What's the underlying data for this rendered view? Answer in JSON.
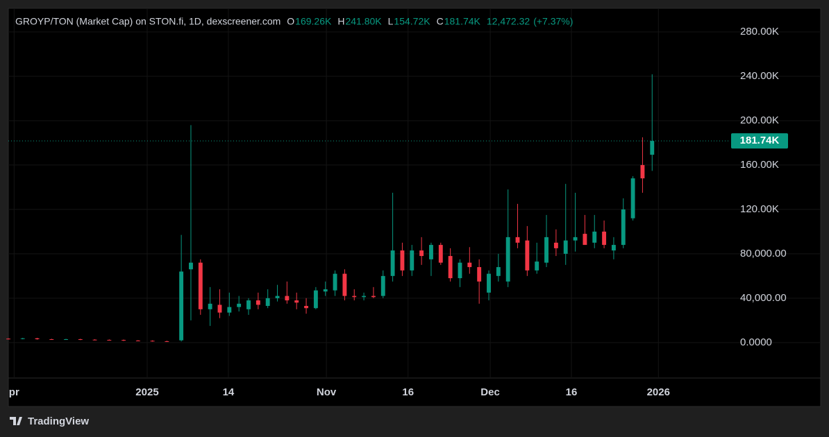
{
  "chart_data": {
    "type": "candlestick",
    "title": "GROYP/TON (Market Cap) on STON.fi, 1D, dexscreener.com",
    "ohlc_header": [
      {
        "letter": "O",
        "value": 169260,
        "label": "169.26K"
      },
      {
        "letter": "H",
        "value": 241800,
        "label": "241.80K"
      },
      {
        "letter": "L",
        "value": 154720,
        "label": "154.72K"
      },
      {
        "letter": "C",
        "value": 181740,
        "label": "181.74K"
      }
    ],
    "change": {
      "value": 12472.32,
      "label": "12,472.32"
    },
    "change_pct": {
      "value": 7.37,
      "label": "(+7.37%)"
    },
    "last_price": {
      "value": 181740,
      "label": "181.74K"
    },
    "watermark": "TradingView",
    "up_color": "#089981",
    "down_color": "#f23645",
    "grid": true,
    "x": [
      0,
      3,
      6,
      9,
      12,
      15,
      18,
      21,
      24,
      27,
      30,
      33,
      36,
      38,
      40,
      42,
      44,
      46,
      48,
      50,
      52,
      54,
      56,
      58,
      60,
      62,
      64,
      66,
      68,
      70,
      72,
      74,
      76,
      78,
      80,
      82,
      84,
      86,
      88,
      90,
      92,
      94,
      96,
      98,
      100,
      102,
      104,
      106,
      108,
      110,
      112,
      114,
      116,
      118,
      120,
      122,
      124,
      126,
      128,
      130,
      132,
      134
    ],
    "open": [
      3500,
      3200,
      3800,
      3000,
      2900,
      3000,
      2600,
      2400,
      2300,
      1800,
      1600,
      1200,
      2000,
      66000,
      72000,
      30000,
      34000,
      27000,
      32000,
      30000,
      38000,
      33000,
      40000,
      42000,
      38000,
      33000,
      31000,
      46000,
      47000,
      62000,
      42000,
      41000,
      42000,
      42000,
      60000,
      83000,
      65000,
      83000,
      75000,
      88000,
      78000,
      58000,
      72000,
      68000,
      45000,
      60000,
      55000,
      95000,
      92000,
      65000,
      72000,
      90000,
      80000,
      92000,
      98000,
      90000,
      100000,
      83000,
      88000,
      112000,
      160000,
      169260
    ],
    "high": [
      3900,
      4200,
      4200,
      3400,
      3400,
      3400,
      3000,
      2800,
      2700,
      2200,
      2000,
      1600,
      97000,
      196000,
      75000,
      50000,
      48000,
      45000,
      42000,
      40000,
      45000,
      48000,
      52000,
      55000,
      45000,
      40000,
      50000,
      55000,
      65000,
      66000,
      48000,
      45000,
      50000,
      65000,
      135000,
      90000,
      88000,
      95000,
      90000,
      90000,
      85000,
      75000,
      86000,
      75000,
      65000,
      80000,
      138000,
      125000,
      105000,
      90000,
      115000,
      102000,
      143000,
      135000,
      115000,
      115000,
      110000,
      95000,
      130000,
      150000,
      185000,
      241800
    ],
    "low": [
      2800,
      2900,
      2600,
      2500,
      2500,
      2200,
      2000,
      1900,
      1400,
      1200,
      800,
      600,
      1000,
      20000,
      25000,
      15000,
      22000,
      24000,
      28000,
      25000,
      30000,
      31000,
      37000,
      35000,
      30000,
      26000,
      30000,
      42000,
      42000,
      38000,
      38000,
      38000,
      40000,
      40000,
      55000,
      60000,
      60000,
      70000,
      60000,
      70000,
      55000,
      50000,
      62000,
      35000,
      38000,
      55000,
      50000,
      85000,
      60000,
      62000,
      68000,
      78000,
      70000,
      82000,
      88000,
      85000,
      85000,
      75000,
      85000,
      110000,
      135000,
      154720
    ],
    "close": [
      3200,
      3800,
      3000,
      2900,
      3000,
      2600,
      2400,
      2300,
      1800,
      1600,
      1200,
      1000,
      64000,
      72000,
      30000,
      35000,
      27000,
      32000,
      35000,
      38000,
      34000,
      40000,
      42000,
      38000,
      36000,
      31000,
      47000,
      48000,
      62000,
      42000,
      41000,
      42000,
      41000,
      60000,
      83000,
      65000,
      83000,
      78000,
      88000,
      72000,
      58000,
      72000,
      68000,
      55000,
      62000,
      68000,
      95000,
      90000,
      65000,
      73000,
      95000,
      85000,
      92000,
      95000,
      88000,
      100000,
      88000,
      88000,
      120000,
      148000,
      148000,
      181740
    ],
    "xlim": [
      0,
      150
    ],
    "xticks": [
      {
        "value": 1.2,
        "label": "pr"
      },
      {
        "value": 28.9,
        "label": "2025"
      },
      {
        "value": 45.8,
        "label": "14"
      },
      {
        "value": 66.2,
        "label": "Nov"
      },
      {
        "value": 83.2,
        "label": "16"
      },
      {
        "value": 100.3,
        "label": "Dec"
      },
      {
        "value": 117.2,
        "label": "16"
      },
      {
        "value": 135.3,
        "label": "2026"
      }
    ],
    "ylim": [
      -32000,
      300000
    ],
    "yticks": [
      {
        "value": 0,
        "label": "0.0000"
      },
      {
        "value": 40000,
        "label": "40,000.00"
      },
      {
        "value": 80000,
        "label": "80,000.00"
      },
      {
        "value": 120000,
        "label": "120.00K"
      },
      {
        "value": 160000,
        "label": "160.00K"
      },
      {
        "value": 200000,
        "label": "200.00K"
      },
      {
        "value": 240000,
        "label": "240.00K"
      },
      {
        "value": 280000,
        "label": "280.00K"
      }
    ]
  }
}
